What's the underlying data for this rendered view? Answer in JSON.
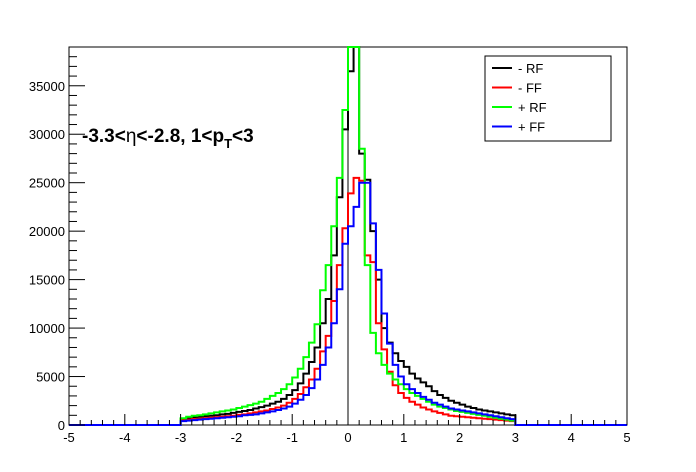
{
  "chart_data": {
    "type": "line",
    "title": "",
    "xlabel": "",
    "ylabel": "",
    "xlim": [
      -5,
      5
    ],
    "ylim": [
      0,
      39000
    ],
    "x_ticks": [
      -5,
      -4,
      -3,
      -2,
      -1,
      0,
      1,
      2,
      3,
      4,
      5
    ],
    "y_ticks": [
      0,
      5000,
      10000,
      15000,
      20000,
      25000,
      30000,
      35000
    ],
    "x_tick_labels": [
      "-5",
      "-4",
      "-3",
      "-2",
      "-1",
      "0",
      "1",
      "2",
      "3",
      "4",
      "5"
    ],
    "y_tick_labels": [
      "0",
      "5000",
      "10000",
      "15000",
      "20000",
      "25000",
      "30000",
      "35000"
    ],
    "grid": false,
    "legend_position": "top-right",
    "annotation": {
      "parts": [
        "-3.3<",
        "η",
        "<-2.8, 1<p",
        "T",
        "<3"
      ]
    },
    "bin_width": 0.1,
    "x_bin_start": -3,
    "series": [
      {
        "name": "- RF",
        "color": "#000000",
        "values": [
          600,
          700,
          800,
          850,
          900,
          950,
          1000,
          1100,
          1150,
          1250,
          1350,
          1450,
          1550,
          1700,
          1850,
          2000,
          2200,
          2400,
          2700,
          3100,
          3600,
          4300,
          5300,
          6500,
          8000,
          10500,
          13000,
          17500,
          23500,
          30500,
          36500,
          39000,
          28000,
          25300,
          20000,
          15000,
          10000,
          8500,
          7400,
          6600,
          6000,
          5300,
          4800,
          4400,
          4000,
          3500,
          3100,
          2800,
          2500,
          2300,
          2100,
          1900,
          1750,
          1600,
          1500,
          1400,
          1300,
          1200,
          1100,
          1000
        ]
      },
      {
        "name": "- FF",
        "color": "#ff0000",
        "values": [
          500,
          550,
          600,
          650,
          700,
          750,
          800,
          850,
          900,
          950,
          1050,
          1100,
          1200,
          1300,
          1400,
          1500,
          1650,
          1800,
          2000,
          2300,
          2700,
          3200,
          3900,
          4700,
          5800,
          7600,
          9200,
          12800,
          16500,
          20300,
          23900,
          25500,
          25200,
          17500,
          16800,
          10500,
          7800,
          5500,
          4100,
          3300,
          2800,
          2400,
          2100,
          1800,
          1600,
          1400,
          1250,
          1100,
          950,
          900,
          850,
          800,
          750,
          700,
          650,
          600,
          550,
          500,
          450,
          400
        ]
      },
      {
        "name": "+ RF",
        "color": "#00ff00",
        "values": [
          700,
          850,
          950,
          1000,
          1100,
          1200,
          1300,
          1400,
          1500,
          1600,
          1750,
          1900,
          2050,
          2200,
          2400,
          2700,
          3000,
          3300,
          3700,
          4200,
          4900,
          5800,
          7000,
          8500,
          10400,
          13900,
          16500,
          20500,
          25500,
          32500,
          39000,
          39000,
          28500,
          16500,
          9500,
          7400,
          6200,
          5300,
          4700,
          4200,
          3700,
          3300,
          3000,
          2700,
          2400,
          2100,
          1900,
          1750,
          1600,
          1450,
          1350,
          1250,
          1150,
          1050,
          950,
          850,
          750,
          650,
          550,
          450
        ]
      },
      {
        "name": "+ FF",
        "color": "#0000ff",
        "values": [
          400,
          450,
          500,
          550,
          600,
          650,
          700,
          750,
          800,
          850,
          900,
          1000,
          1050,
          1100,
          1200,
          1300,
          1400,
          1550,
          1700,
          1900,
          2200,
          2600,
          3100,
          3800,
          4700,
          6200,
          8000,
          10500,
          14000,
          18700,
          20500,
          22500,
          25000,
          25000,
          20800,
          16000,
          11500,
          8400,
          6200,
          5000,
          4200,
          3700,
          3300,
          2900,
          2600,
          2300,
          2100,
          1900,
          1700,
          1600,
          1500,
          1400,
          1300,
          1200,
          1100,
          1000,
          900,
          800,
          700,
          600
        ]
      }
    ]
  }
}
